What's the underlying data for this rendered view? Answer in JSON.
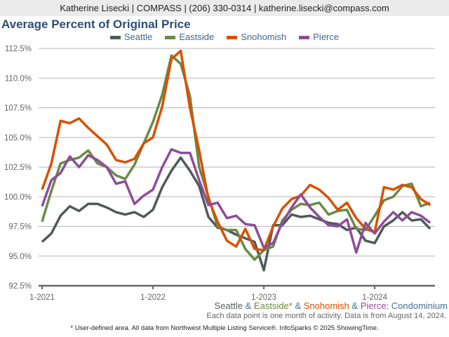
{
  "header": "Katherine Lisecki | COMPASS | (206) 330-0314 | katherine.lisecki@compass.com",
  "subtitle_parts": [
    {
      "text": "Seattle",
      "color": "#555f5f"
    },
    {
      "text": " & ",
      "color": "#4a6f96"
    },
    {
      "text": "Eastside*",
      "color": "#6a8a45"
    },
    {
      "text": " & ",
      "color": "#4a6f96"
    },
    {
      "text": "Snohomish",
      "color": "#d95000"
    },
    {
      "text": " & ",
      "color": "#4a6f96"
    },
    {
      "text": "Pierce",
      "color": "#8e4d9a"
    },
    {
      "text": ": Condominium",
      "color": "#4a6f96"
    }
  ],
  "note": "Each data point is one month of activity. Data is from August 14, 2024.",
  "footer": "* User-defined area. All data from Northwest Multiple Listing Service®. InfoSparks © 2025 ShowingTime.",
  "chart_data": {
    "type": "line",
    "title": "Average Percent of Original Price",
    "xlabel": "",
    "ylabel": "",
    "ylim": [
      92.5,
      112.5
    ],
    "yticks": [
      "112.5%",
      "110.0%",
      "107.5%",
      "105.0%",
      "102.5%",
      "100.0%",
      "97.5%",
      "95.0%",
      "92.5%"
    ],
    "ytick_values": [
      112.5,
      110,
      107.5,
      105,
      102.5,
      100,
      97.5,
      95,
      92.5
    ],
    "xticks": [
      {
        "label": "1-2021",
        "index": 0
      },
      {
        "label": "1-2022",
        "index": 12
      },
      {
        "label": "1-2023",
        "index": 24
      },
      {
        "label": "1-2024",
        "index": 36
      }
    ],
    "x_range": "1-2021 to 7-2024 (monthly)",
    "grid": true,
    "legend_position": "top-center",
    "series": [
      {
        "name": "Seattle",
        "color": "#505a5a",
        "values": [
          96.2,
          96.9,
          98.4,
          99.2,
          98.8,
          99.4,
          99.4,
          99.1,
          98.7,
          98.5,
          98.7,
          98.3,
          98.9,
          100.8,
          102.2,
          103.3,
          102.2,
          100.9,
          98.3,
          97.4,
          97.2,
          96.8,
          96.5,
          96.2,
          93.8,
          97.6,
          97.6,
          98.5,
          98.3,
          98.4,
          98.1,
          97.8,
          97.7,
          97.2,
          97.4,
          96.3,
          96.1,
          97.5,
          98.0,
          98.7,
          98.0,
          98.1,
          97.3
        ]
      },
      {
        "name": "Eastside",
        "color": "#6a8a45",
        "values": [
          97.9,
          100.5,
          102.8,
          103.1,
          103.3,
          103.9,
          102.8,
          102.5,
          101.8,
          101.5,
          102.7,
          104.5,
          106.3,
          108.6,
          111.9,
          111.2,
          108.5,
          102.5,
          100.0,
          97.5,
          97.2,
          97.2,
          95.6,
          94.7,
          95.5,
          95.8,
          98.0,
          98.9,
          99.4,
          99.3,
          99.5,
          98.5,
          98.8,
          98.9,
          97.3,
          97.2,
          98.4,
          99.7,
          100.0,
          100.9,
          101.1,
          99.2,
          99.5
        ]
      },
      {
        "name": "Snohomish",
        "color": "#d95000",
        "values": [
          100.6,
          102.8,
          106.4,
          106.2,
          106.6,
          105.8,
          105.1,
          104.4,
          103.1,
          102.9,
          103.2,
          104.5,
          105.0,
          107.6,
          111.6,
          112.3,
          107.5,
          103.9,
          99.8,
          97.9,
          96.3,
          95.8,
          97.3,
          95.6,
          95.5,
          97.5,
          99.0,
          99.8,
          100.1,
          101.0,
          100.6,
          99.9,
          98.9,
          99.5,
          98.2,
          97.3,
          97.0,
          100.8,
          100.6,
          101.0,
          100.8,
          99.8,
          99.3
        ]
      },
      {
        "name": "Pierce",
        "color": "#8e4d9a",
        "values": [
          99.2,
          101.4,
          102.0,
          103.4,
          102.5,
          103.5,
          103.1,
          102.5,
          101.1,
          101.3,
          99.4,
          100.1,
          100.6,
          102.5,
          104.0,
          103.7,
          103.7,
          101.4,
          99.3,
          99.5,
          98.2,
          98.4,
          97.7,
          97.6,
          95.7,
          96.1,
          97.8,
          99.1,
          100.2,
          99.1,
          98.3,
          97.6,
          97.5,
          98.1,
          95.3,
          97.8,
          96.9,
          97.9,
          98.7,
          98.0,
          98.7,
          98.4,
          97.8
        ]
      }
    ]
  }
}
